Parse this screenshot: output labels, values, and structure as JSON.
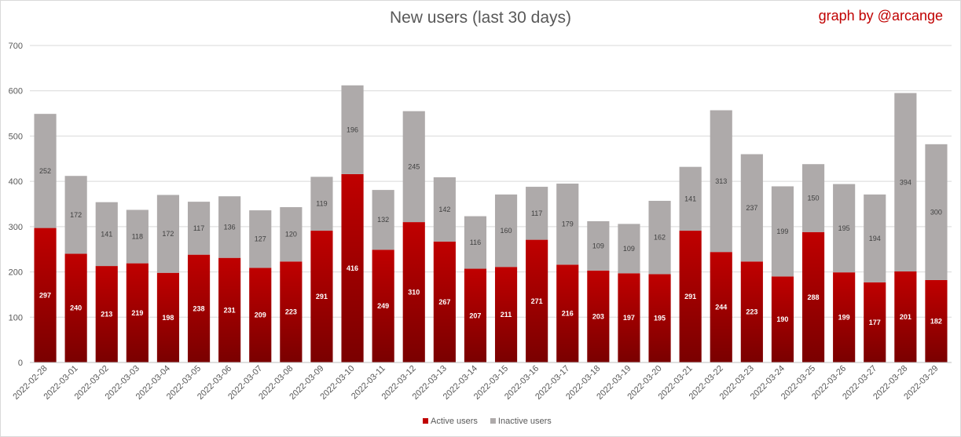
{
  "chart_data": {
    "type": "bar",
    "stacked": true,
    "title": "New users (last 30 days)",
    "credit": "graph by @arcange",
    "categories": [
      "2022-02-28",
      "2022-03-01",
      "2022-03-02",
      "2022-03-03",
      "2022-03-04",
      "2022-03-05",
      "2022-03-06",
      "2022-03-07",
      "2022-03-08",
      "2022-03-09",
      "2022-03-10",
      "2022-03-11",
      "2022-03-12",
      "2022-03-13",
      "2022-03-14",
      "2022-03-15",
      "2022-03-16",
      "2022-03-17",
      "2022-03-18",
      "2022-03-19",
      "2022-03-20",
      "2022-03-21",
      "2022-03-22",
      "2022-03-23",
      "2022-03-24",
      "2022-03-25",
      "2022-03-26",
      "2022-03-27",
      "2022-03-28",
      "2022-03-29"
    ],
    "series": [
      {
        "name": "Active users",
        "color": "#c00000",
        "color_dark": "#7a0000",
        "values": [
          297,
          240,
          213,
          219,
          198,
          238,
          231,
          209,
          223,
          291,
          416,
          249,
          310,
          267,
          207,
          211,
          271,
          216,
          203,
          197,
          195,
          291,
          244,
          223,
          190,
          288,
          199,
          177,
          201,
          182
        ]
      },
      {
        "name": "Inactive users",
        "color": "#aeaaaa",
        "values": [
          252,
          172,
          141,
          118,
          172,
          117,
          136,
          127,
          120,
          119,
          196,
          132,
          245,
          142,
          116,
          160,
          117,
          179,
          109,
          109,
          162,
          141,
          313,
          237,
          199,
          150,
          195,
          194,
          394,
          300
        ]
      }
    ],
    "yticks": [
      0,
      100,
      200,
      300,
      400,
      500,
      600,
      700
    ],
    "ylim": [
      0,
      700
    ],
    "grid": true,
    "legend_position": "bottom"
  }
}
